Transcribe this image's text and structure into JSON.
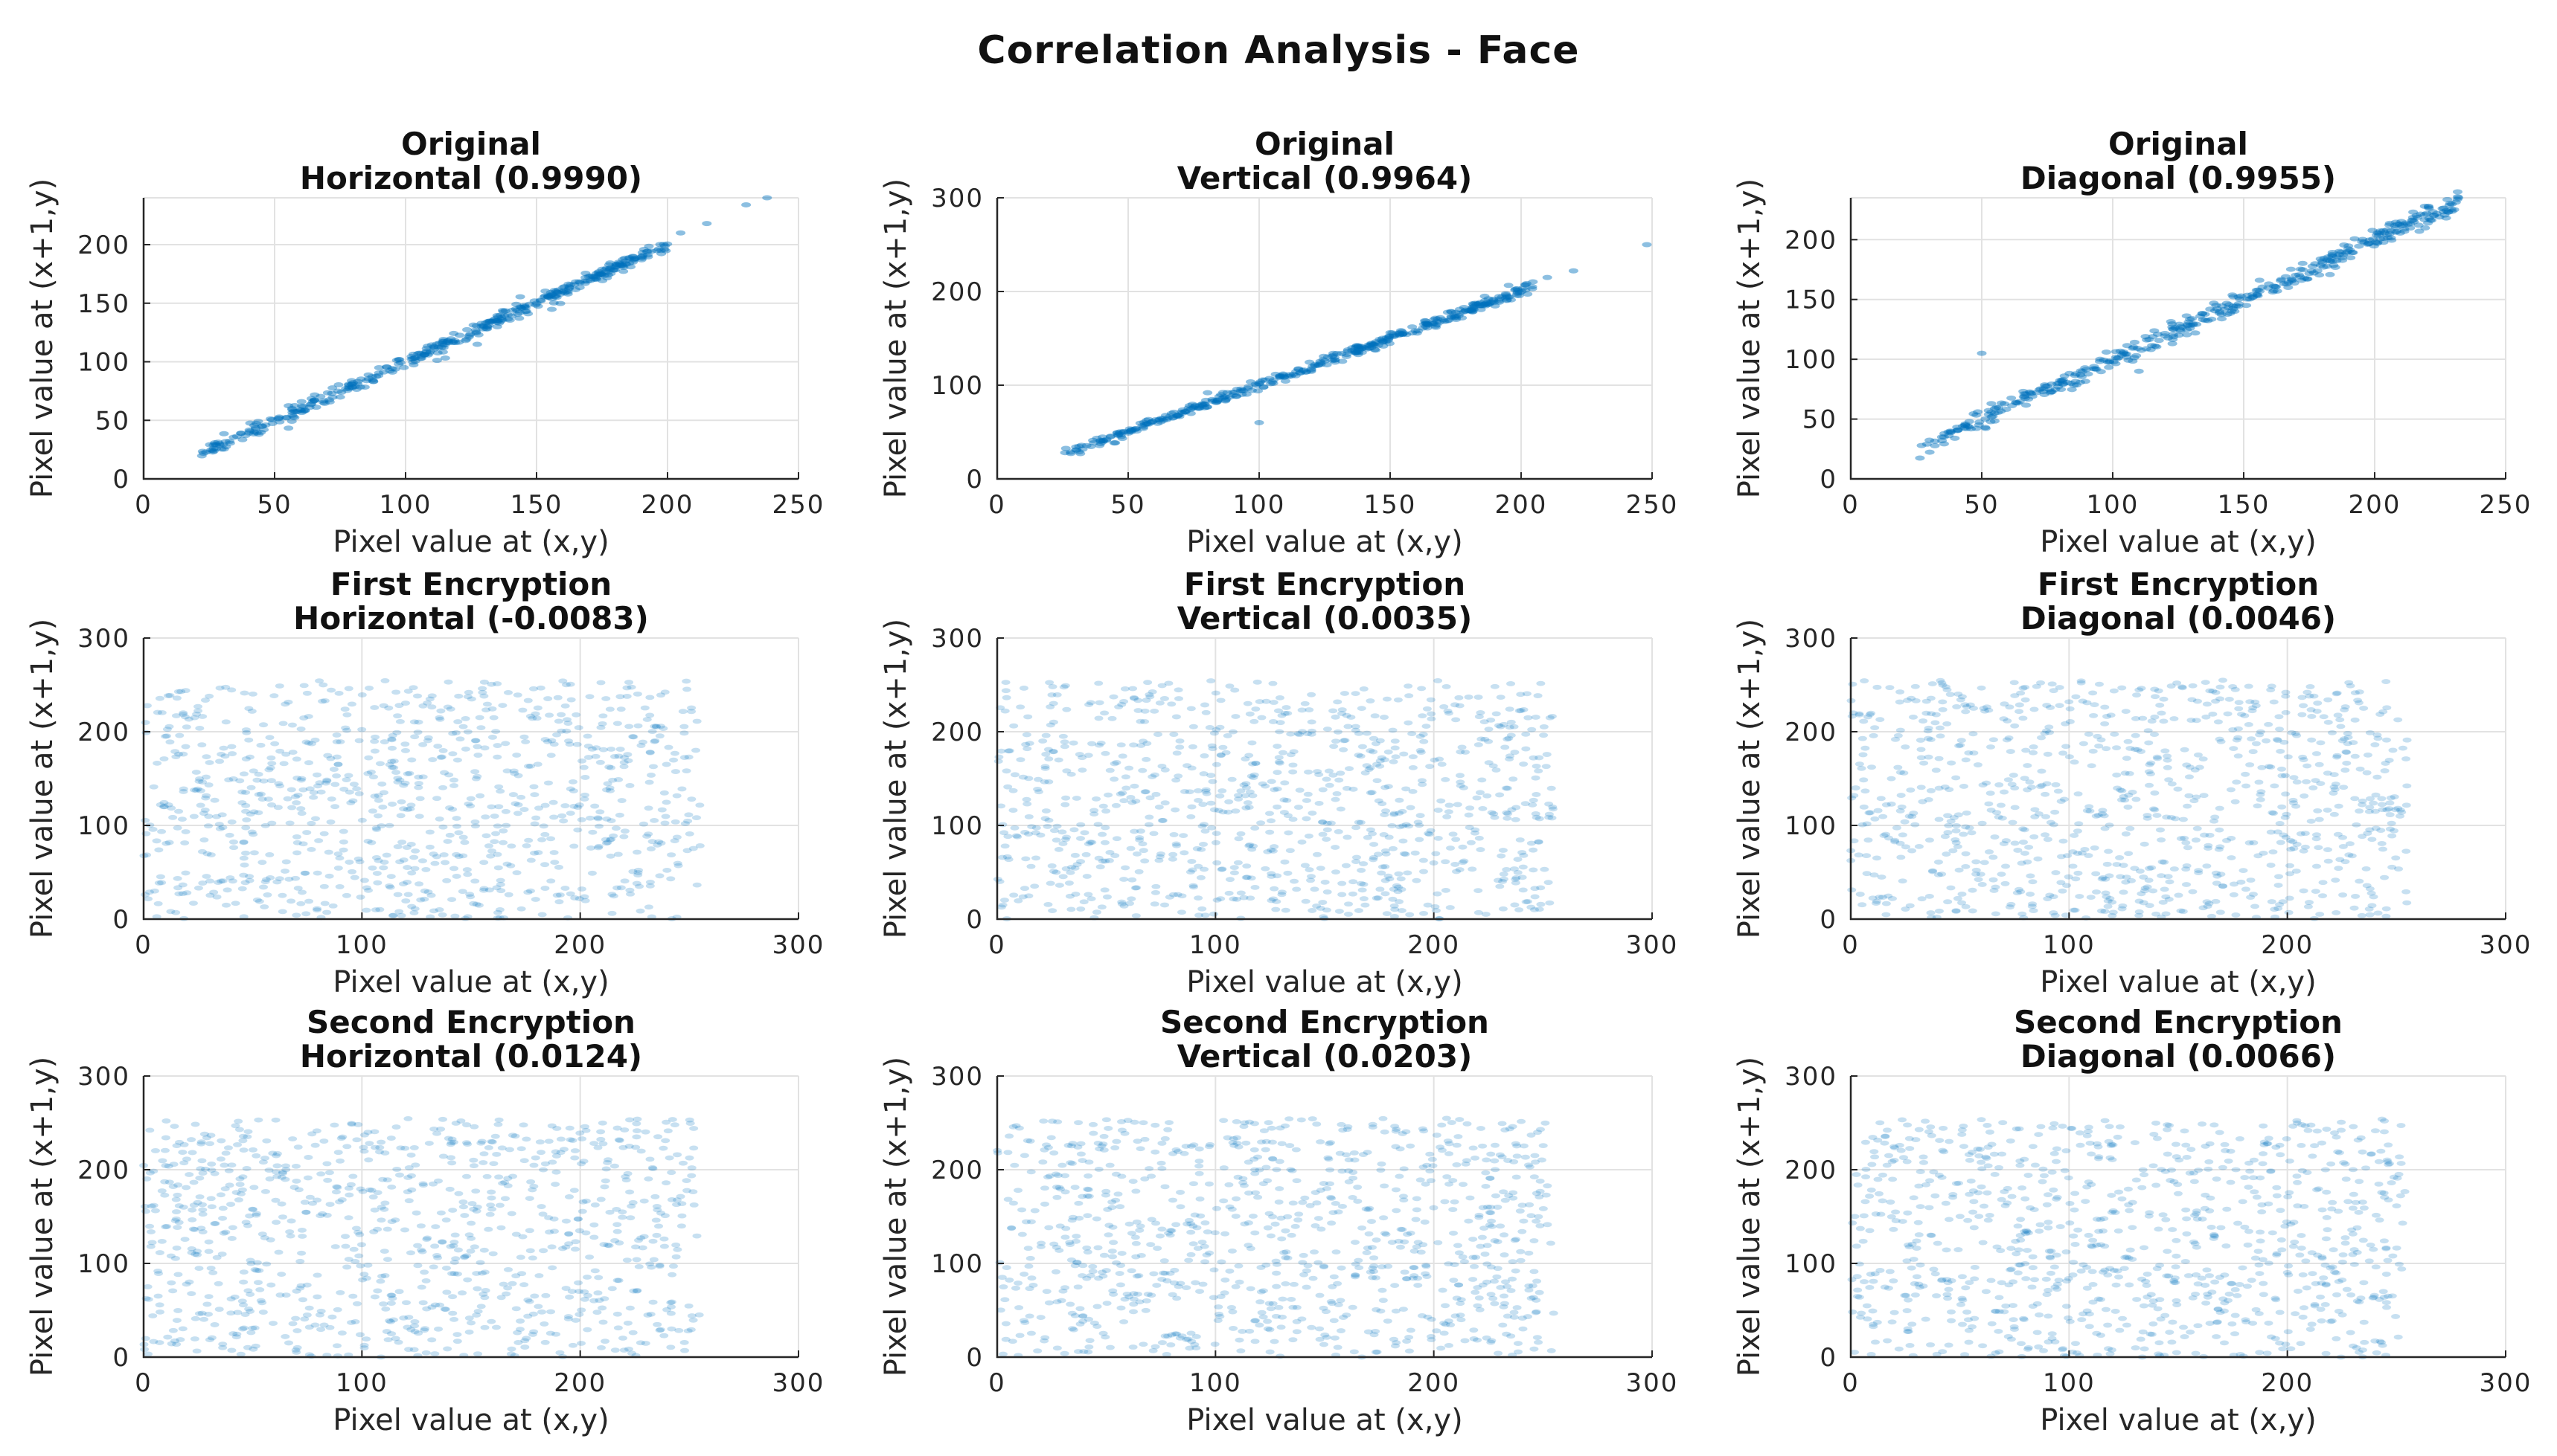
{
  "figure": {
    "title": "Correlation Analysis - Face"
  },
  "chart_data": [
    {
      "type": "scatter",
      "row": "Original",
      "direction": "Horizontal",
      "title": [
        "Original",
        "Horizontal (0.9990)"
      ],
      "coefficient": 0.999,
      "pattern": "linear",
      "spread": 4,
      "point_count": 420,
      "xlabel": "Pixel value at (x,y)",
      "ylabel": "Pixel value at (x+1,y)",
      "xlim": [
        0,
        250
      ],
      "ylim": [
        0,
        240
      ],
      "xticks": [
        0,
        50,
        100,
        150,
        200,
        250
      ],
      "yticks": [
        0,
        50,
        100,
        150,
        200
      ],
      "grid": true,
      "data_range": [
        22,
        200
      ],
      "outliers": [
        [
          230,
          234
        ],
        [
          238,
          240
        ],
        [
          215,
          218
        ],
        [
          205,
          210
        ]
      ]
    },
    {
      "type": "scatter",
      "row": "Original",
      "direction": "Vertical",
      "title": [
        "Original",
        "Vertical (0.9964)"
      ],
      "coefficient": 0.9964,
      "pattern": "linear",
      "spread": 4,
      "point_count": 420,
      "xlabel": "Pixel value at (x,y)",
      "ylabel": "Pixel value at (x+1,y)",
      "xlim": [
        0,
        250
      ],
      "ylim": [
        0,
        300
      ],
      "xticks": [
        0,
        50,
        100,
        150,
        200,
        250
      ],
      "yticks": [
        0,
        100,
        200,
        300
      ],
      "grid": true,
      "data_range": [
        25,
        205
      ],
      "outliers": [
        [
          100,
          60
        ],
        [
          220,
          222
        ],
        [
          210,
          215
        ],
        [
          248,
          250
        ]
      ]
    },
    {
      "type": "scatter",
      "row": "Original",
      "direction": "Diagonal",
      "title": [
        "Original",
        "Diagonal (0.9955)"
      ],
      "coefficient": 0.9955,
      "pattern": "linear",
      "spread": 6,
      "point_count": 420,
      "xlabel": "Pixel value at (x,y)",
      "ylabel": "Pixel value at (x+1,y)",
      "xlim": [
        0,
        250
      ],
      "ylim": [
        0,
        235
      ],
      "xticks": [
        0,
        50,
        100,
        150,
        200,
        250
      ],
      "yticks": [
        0,
        50,
        100,
        150,
        200
      ],
      "grid": true,
      "data_range": [
        25,
        232
      ],
      "outliers": [
        [
          50,
          105
        ],
        [
          110,
          90
        ],
        [
          215,
          215
        ],
        [
          228,
          223
        ],
        [
          232,
          235
        ]
      ]
    },
    {
      "type": "scatter",
      "row": "First Encryption",
      "direction": "Horizontal",
      "title": [
        "First Encryption",
        "Horizontal (-0.0083)"
      ],
      "coefficient": -0.0083,
      "pattern": "uniform",
      "point_count": 900,
      "xlabel": "Pixel value at (x,y)",
      "ylabel": "Pixel value at (x+1,y)",
      "xlim": [
        0,
        300
      ],
      "ylim": [
        0,
        300
      ],
      "xticks": [
        0,
        100,
        200,
        300
      ],
      "yticks": [
        0,
        100,
        200,
        300
      ],
      "grid": true,
      "data_range": [
        0,
        255
      ]
    },
    {
      "type": "scatter",
      "row": "First Encryption",
      "direction": "Vertical",
      "title": [
        "First Encryption",
        "Vertical (0.0035)"
      ],
      "coefficient": 0.0035,
      "pattern": "uniform",
      "point_count": 900,
      "xlabel": "Pixel value at (x,y)",
      "ylabel": "Pixel value at (x+1,y)",
      "xlim": [
        0,
        300
      ],
      "ylim": [
        0,
        300
      ],
      "xticks": [
        0,
        100,
        200,
        300
      ],
      "yticks": [
        0,
        100,
        200,
        300
      ],
      "grid": true,
      "data_range": [
        0,
        255
      ]
    },
    {
      "type": "scatter",
      "row": "First Encryption",
      "direction": "Diagonal",
      "title": [
        "First Encryption",
        "Diagonal (0.0046)"
      ],
      "coefficient": 0.0046,
      "pattern": "uniform",
      "point_count": 900,
      "xlabel": "Pixel value at (x,y)",
      "ylabel": "Pixel value at (x+1,y)",
      "xlim": [
        0,
        300
      ],
      "ylim": [
        0,
        300
      ],
      "xticks": [
        0,
        100,
        200,
        300
      ],
      "yticks": [
        0,
        100,
        200,
        300
      ],
      "grid": true,
      "data_range": [
        0,
        255
      ]
    },
    {
      "type": "scatter",
      "row": "Second Encryption",
      "direction": "Horizontal",
      "title": [
        "Second Encryption",
        "Horizontal (0.0124)"
      ],
      "coefficient": 0.0124,
      "pattern": "uniform",
      "point_count": 900,
      "xlabel": "Pixel value at (x,y)",
      "ylabel": "Pixel value at (x+1,y)",
      "xlim": [
        0,
        300
      ],
      "ylim": [
        0,
        300
      ],
      "xticks": [
        0,
        100,
        200,
        300
      ],
      "yticks": [
        0,
        100,
        200,
        300
      ],
      "grid": true,
      "data_range": [
        0,
        255
      ]
    },
    {
      "type": "scatter",
      "row": "Second Encryption",
      "direction": "Vertical",
      "title": [
        "Second Encryption",
        "Vertical (0.0203)"
      ],
      "coefficient": 0.0203,
      "pattern": "uniform",
      "point_count": 900,
      "xlabel": "Pixel value at (x,y)",
      "ylabel": "Pixel value at (x+1,y)",
      "xlim": [
        0,
        300
      ],
      "ylim": [
        0,
        300
      ],
      "xticks": [
        0,
        100,
        200,
        300
      ],
      "yticks": [
        0,
        100,
        200,
        300
      ],
      "grid": true,
      "data_range": [
        0,
        255
      ]
    },
    {
      "type": "scatter",
      "row": "Second Encryption",
      "direction": "Diagonal",
      "title": [
        "Second Encryption",
        "Diagonal (0.0066)"
      ],
      "coefficient": 0.0066,
      "pattern": "uniform",
      "point_count": 900,
      "xlabel": "Pixel value at (x,y)",
      "ylabel": "Pixel value at (x+1,y)",
      "xlim": [
        0,
        300
      ],
      "ylim": [
        0,
        300
      ],
      "xticks": [
        0,
        100,
        200,
        300
      ],
      "yticks": [
        0,
        100,
        200,
        300
      ],
      "grid": true,
      "data_range": [
        0,
        255
      ]
    }
  ],
  "colors": {
    "point": "#0072bd",
    "grid": "#e2e2e2",
    "axis": "#262626",
    "text": "#262626"
  }
}
